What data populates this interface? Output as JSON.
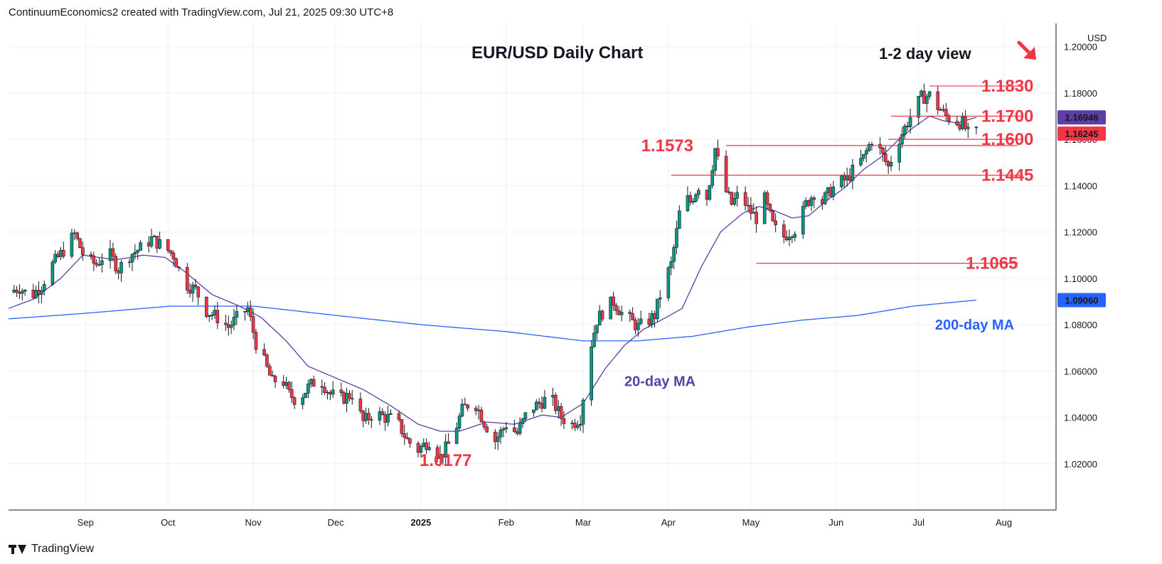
{
  "header": {
    "text": "ContinuumEconomics2 created with TradingView.com, Jul 21, 2025 09:30 UTC+8"
  },
  "footer": {
    "brand": "TradingView",
    "logo_icon": "tradingview-logo-icon"
  },
  "chart_data": {
    "type": "candlestick",
    "title": "EUR/USD Daily Chart",
    "subtitle": "1-2 day view",
    "currency": "USD",
    "outlook_icon": "down-arrow-icon",
    "ylim": [
      1.0,
      1.21
    ],
    "y_ticks": [
      "1.20000",
      "1.18000",
      "1.16000",
      "1.14000",
      "1.12000",
      "1.10000",
      "1.08000",
      "1.06000",
      "1.04000",
      "1.02000"
    ],
    "x_ticks": [
      {
        "label": "Sep",
        "d": 19
      },
      {
        "label": "Oct",
        "d": 49
      },
      {
        "label": "Nov",
        "d": 80
      },
      {
        "label": "Dec",
        "d": 110
      },
      {
        "label": "2025",
        "d": 141,
        "bold": true
      },
      {
        "label": "Feb",
        "d": 172
      },
      {
        "label": "Mar",
        "d": 200
      },
      {
        "label": "Apr",
        "d": 231
      },
      {
        "label": "May",
        "d": 261
      },
      {
        "label": "Jun",
        "d": 292
      },
      {
        "label": "Jul",
        "d": 322
      },
      {
        "label": "Aug",
        "d": 353
      }
    ],
    "date_range_days": [
      -9,
      372
    ],
    "price_badges": [
      {
        "label": "1.16946",
        "value": 1.16946,
        "color": "#5b3fa3"
      },
      {
        "label": "1.16245",
        "value": 1.16245,
        "color": "#f23645"
      },
      {
        "label": "1.09060",
        "value": 1.0906,
        "color": "#2962ff"
      }
    ],
    "levels": [
      {
        "label": "1.1830",
        "value": 1.183,
        "from": 326,
        "to": 360
      },
      {
        "label": "1.1700",
        "value": 1.17,
        "from": 312,
        "to": 360
      },
      {
        "label": "1.1600",
        "value": 1.16,
        "from": 311,
        "to": 360
      },
      {
        "label": "1.1573",
        "value": 1.1573,
        "from": 252,
        "to": 358
      },
      {
        "label": "1.1445",
        "value": 1.1445,
        "from": 232,
        "to": 360
      },
      {
        "label": "1.1065",
        "value": 1.1065,
        "from": 263,
        "to": 358
      }
    ],
    "low_label": {
      "label": "1.0177",
      "value": 1.0177,
      "d": 150
    },
    "ma_labels": [
      {
        "label": "20-day MA",
        "color": "#5b3fa3",
        "d": 215,
        "y": 1.0535
      },
      {
        "label": "200-day MA",
        "color": "#2962ff",
        "d": 328,
        "y": 1.0778
      }
    ],
    "colors": {
      "up": "#089981",
      "down": "#f23645",
      "level": "#f23645",
      "ma20": "#5b3fa3",
      "ma200": "#2962ff",
      "grid": "#eef0f3"
    },
    "ma20_points": [
      [
        -9,
        1.087
      ],
      [
        0,
        1.091
      ],
      [
        10,
        1.1
      ],
      [
        18,
        1.11
      ],
      [
        30,
        1.108
      ],
      [
        40,
        1.11
      ],
      [
        48,
        1.109
      ],
      [
        55,
        1.103
      ],
      [
        65,
        1.093
      ],
      [
        75,
        1.088
      ],
      [
        83,
        1.083
      ],
      [
        92,
        1.073
      ],
      [
        100,
        1.062
      ],
      [
        110,
        1.057
      ],
      [
        120,
        1.052
      ],
      [
        130,
        1.045
      ],
      [
        140,
        1.037
      ],
      [
        148,
        1.034
      ],
      [
        155,
        1.034
      ],
      [
        165,
        1.038
      ],
      [
        175,
        1.037
      ],
      [
        185,
        1.041
      ],
      [
        192,
        1.04
      ],
      [
        200,
        1.046
      ],
      [
        208,
        1.061
      ],
      [
        215,
        1.071
      ],
      [
        222,
        1.078
      ],
      [
        230,
        1.083
      ],
      [
        236,
        1.087
      ],
      [
        243,
        1.105
      ],
      [
        250,
        1.12
      ],
      [
        258,
        1.128
      ],
      [
        264,
        1.131
      ],
      [
        270,
        1.129
      ],
      [
        276,
        1.126
      ],
      [
        282,
        1.127
      ],
      [
        288,
        1.133
      ],
      [
        295,
        1.139
      ],
      [
        302,
        1.147
      ],
      [
        308,
        1.152
      ],
      [
        314,
        1.159
      ],
      [
        320,
        1.165
      ],
      [
        326,
        1.17
      ],
      [
        331,
        1.168
      ],
      [
        336,
        1.167
      ],
      [
        343,
        1.1695
      ]
    ],
    "ma200_points": [
      [
        -9,
        1.0825
      ],
      [
        20,
        1.085
      ],
      [
        50,
        1.088
      ],
      [
        80,
        1.088
      ],
      [
        110,
        1.084
      ],
      [
        141,
        1.08
      ],
      [
        172,
        1.077
      ],
      [
        200,
        1.073
      ],
      [
        220,
        1.073
      ],
      [
        240,
        1.075
      ],
      [
        260,
        1.079
      ],
      [
        280,
        1.082
      ],
      [
        300,
        1.084
      ],
      [
        320,
        1.088
      ],
      [
        343,
        1.0906
      ]
    ],
    "closes": [
      [
        -9,
        1.094
      ],
      [
        -5,
        1.096
      ],
      [
        -1,
        1.092
      ],
      [
        3,
        1.097
      ],
      [
        7,
        1.106
      ],
      [
        11,
        1.112
      ],
      [
        15,
        1.119
      ],
      [
        19,
        1.108
      ],
      [
        23,
        1.106
      ],
      [
        27,
        1.112
      ],
      [
        31,
        1.104
      ],
      [
        35,
        1.11
      ],
      [
        39,
        1.113
      ],
      [
        43,
        1.117
      ],
      [
        47,
        1.114
      ],
      [
        51,
        1.11
      ],
      [
        55,
        1.098
      ],
      [
        59,
        1.095
      ],
      [
        63,
        1.086
      ],
      [
        67,
        1.083
      ],
      [
        71,
        1.079
      ],
      [
        75,
        1.084
      ],
      [
        78,
        1.087
      ],
      [
        81,
        1.072
      ],
      [
        84,
        1.064
      ],
      [
        87,
        1.055
      ],
      [
        90,
        1.058
      ],
      [
        93,
        1.05
      ],
      [
        96,
        1.047
      ],
      [
        100,
        1.053
      ],
      [
        104,
        1.057
      ],
      [
        108,
        1.05
      ],
      [
        112,
        1.048
      ],
      [
        116,
        1.05
      ],
      [
        120,
        1.038
      ],
      [
        124,
        1.042
      ],
      [
        128,
        1.04
      ],
      [
        132,
        1.039
      ],
      [
        136,
        1.03
      ],
      [
        140,
        1.026
      ],
      [
        144,
        1.03
      ],
      [
        148,
        1.023
      ],
      [
        152,
        1.03
      ],
      [
        156,
        1.043
      ],
      [
        160,
        1.048
      ],
      [
        164,
        1.038
      ],
      [
        168,
        1.03
      ],
      [
        172,
        1.037
      ],
      [
        176,
        1.033
      ],
      [
        180,
        1.043
      ],
      [
        184,
        1.046
      ],
      [
        188,
        1.049
      ],
      [
        192,
        1.04
      ],
      [
        196,
        1.037
      ],
      [
        199,
        1.04
      ],
      [
        202,
        1.067
      ],
      [
        205,
        1.082
      ],
      [
        208,
        1.087
      ],
      [
        211,
        1.09
      ],
      [
        214,
        1.085
      ],
      [
        217,
        1.082
      ],
      [
        220,
        1.079
      ],
      [
        223,
        1.081
      ],
      [
        226,
        1.084
      ],
      [
        229,
        1.097
      ],
      [
        232,
        1.106
      ],
      [
        234,
        1.12
      ],
      [
        236,
        1.136
      ],
      [
        239,
        1.133
      ],
      [
        242,
        1.14
      ],
      [
        245,
        1.135
      ],
      [
        248,
        1.156
      ],
      [
        251,
        1.14
      ],
      [
        254,
        1.132
      ],
      [
        257,
        1.137
      ],
      [
        260,
        1.13
      ],
      [
        263,
        1.126
      ],
      [
        266,
        1.134
      ],
      [
        269,
        1.123
      ],
      [
        272,
        1.117
      ],
      [
        275,
        1.12
      ],
      [
        278,
        1.122
      ],
      [
        281,
        1.132
      ],
      [
        284,
        1.137
      ],
      [
        287,
        1.133
      ],
      [
        290,
        1.138
      ],
      [
        293,
        1.141
      ],
      [
        296,
        1.143
      ],
      [
        299,
        1.148
      ],
      [
        302,
        1.152
      ],
      [
        305,
        1.16
      ],
      [
        308,
        1.155
      ],
      [
        311,
        1.148
      ],
      [
        314,
        1.158
      ],
      [
        317,
        1.165
      ],
      [
        320,
        1.172
      ],
      [
        323,
        1.178
      ],
      [
        326,
        1.179
      ],
      [
        329,
        1.174
      ],
      [
        332,
        1.17
      ],
      [
        335,
        1.168
      ],
      [
        338,
        1.167
      ],
      [
        341,
        1.16
      ],
      [
        343,
        1.1625
      ]
    ]
  }
}
